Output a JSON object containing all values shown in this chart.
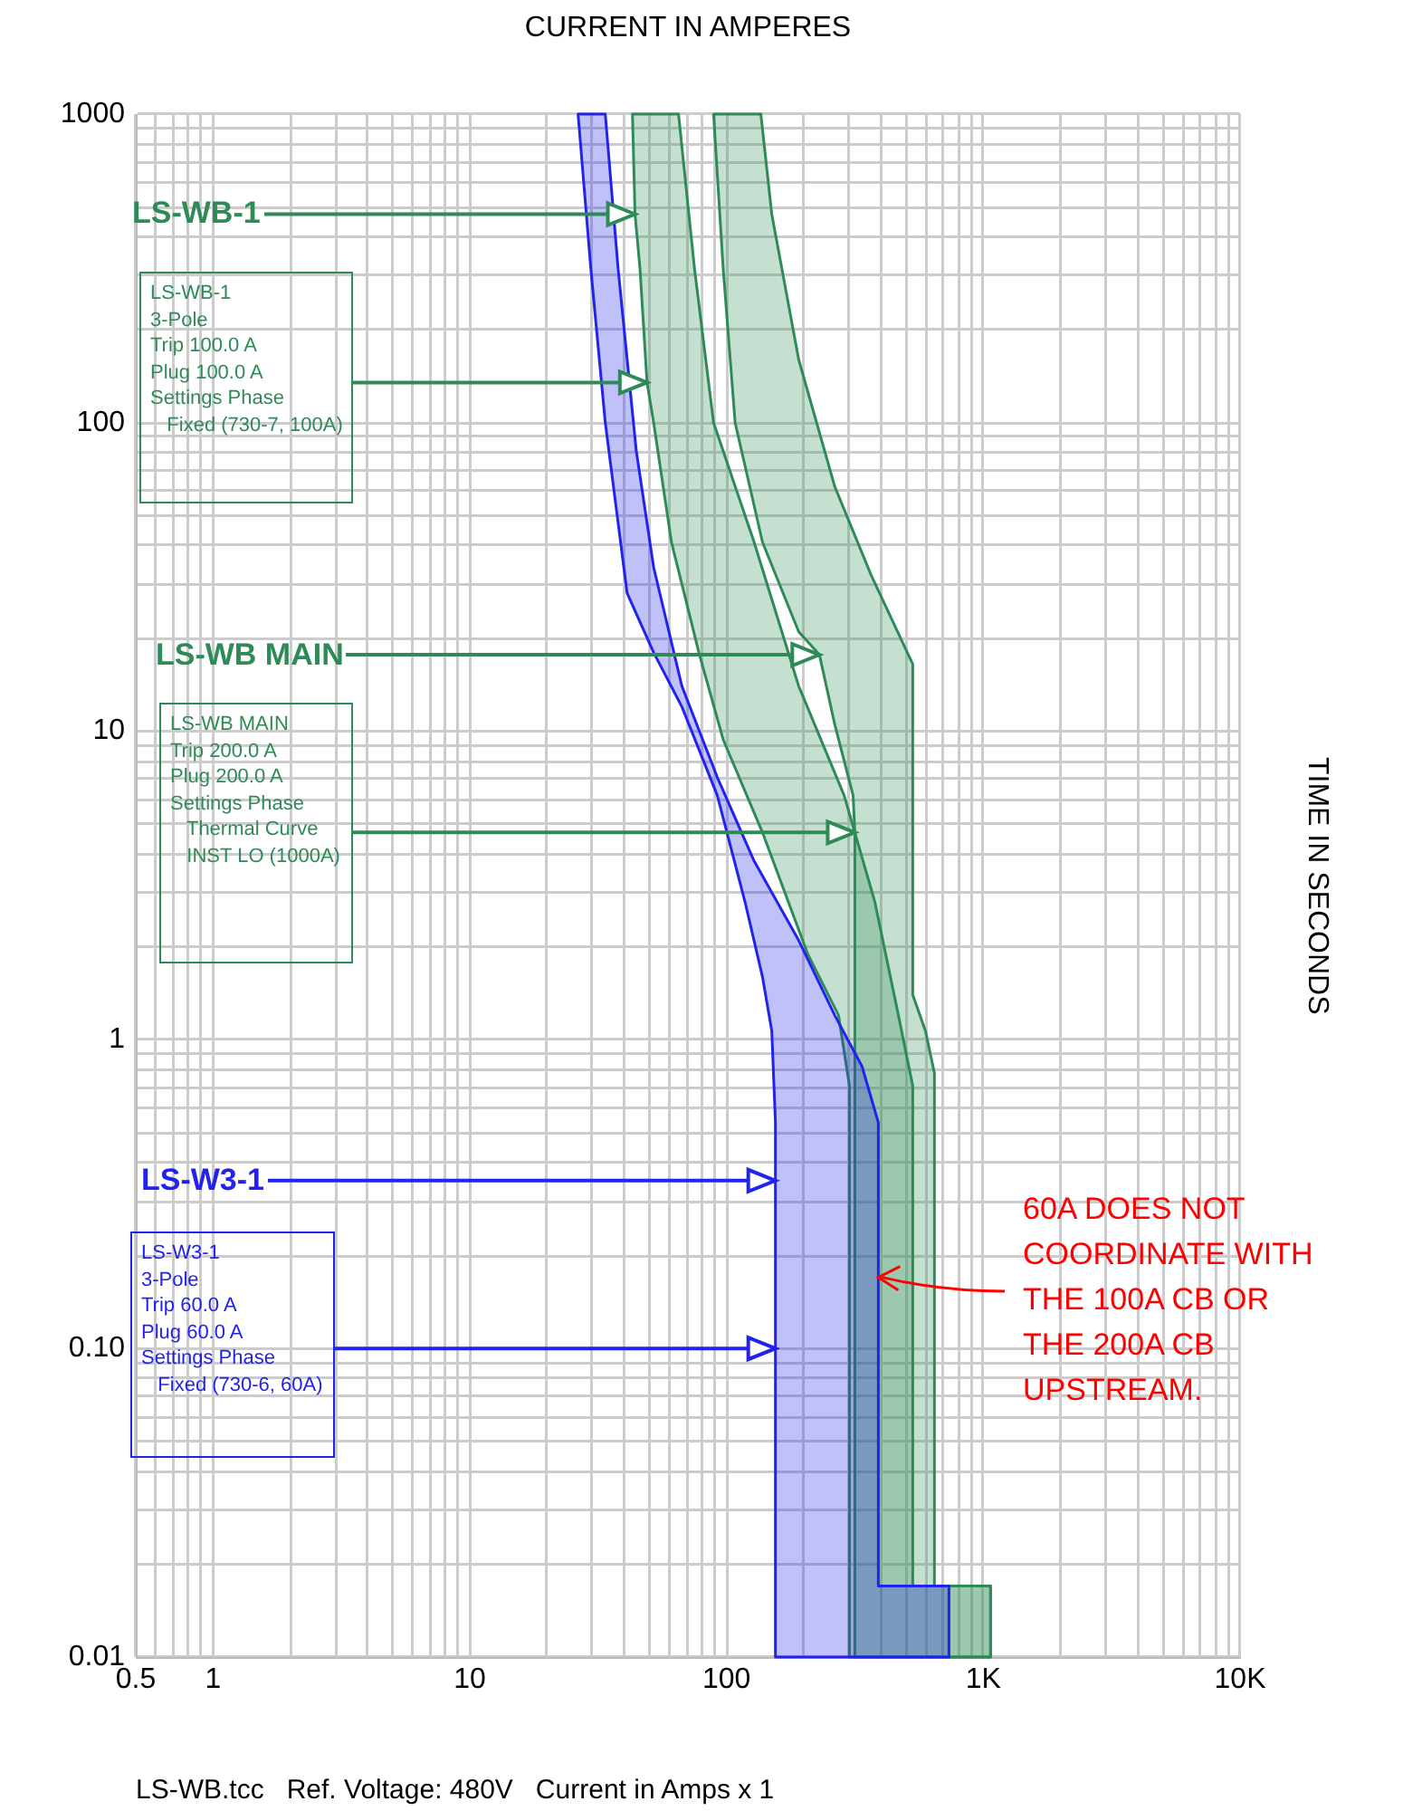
{
  "chart_data": {
    "type": "area",
    "xlabel": "CURRENT IN AMPERES",
    "ylabel": "TIME IN SECONDS",
    "log": "xy",
    "grid": true,
    "legend": false,
    "xlim": [
      0.5,
      10000
    ],
    "ylim": [
      0.01,
      1000
    ],
    "xticks": [
      0.5,
      {
        "value": 0.6,
        "label": null
      },
      {
        "value": 0.7,
        "label": null
      },
      {
        "value": 0.8,
        "label": null
      },
      {
        "value": 0.9,
        "label": null
      },
      1,
      {
        "value": 2,
        "label": null
      },
      {
        "value": 3,
        "label": null
      },
      {
        "value": 4,
        "label": null
      },
      {
        "value": 5,
        "label": null
      },
      {
        "value": 6,
        "label": null
      },
      {
        "value": 7,
        "label": null
      },
      {
        "value": 8,
        "label": null
      },
      {
        "value": 9,
        "label": null
      },
      10,
      {
        "value": 20,
        "label": null
      },
      {
        "value": 30,
        "label": null
      },
      {
        "value": 40,
        "label": null
      },
      {
        "value": 50,
        "label": null
      },
      {
        "value": 60,
        "label": null
      },
      {
        "value": 70,
        "label": null
      },
      {
        "value": 80,
        "label": null
      },
      {
        "value": 90,
        "label": null
      },
      100,
      {
        "value": 200,
        "label": null
      },
      {
        "value": 300,
        "label": null
      },
      {
        "value": 400,
        "label": null
      },
      {
        "value": 500,
        "label": null
      },
      {
        "value": 600,
        "label": null
      },
      {
        "value": 700,
        "label": null
      },
      {
        "value": 800,
        "label": null
      },
      {
        "value": 900,
        "label": null
      },
      {
        "value": 1000,
        "label": "1K"
      },
      {
        "value": 2000,
        "label": null
      },
      {
        "value": 3000,
        "label": null
      },
      {
        "value": 4000,
        "label": null
      },
      {
        "value": 5000,
        "label": null
      },
      {
        "value": 6000,
        "label": null
      },
      {
        "value": 7000,
        "label": null
      },
      {
        "value": 8000,
        "label": null
      },
      {
        "value": 9000,
        "label": null
      },
      {
        "value": 10000,
        "label": "10K"
      }
    ],
    "yticks": [
      0.01,
      {
        "value": 0.02,
        "label": null
      },
      {
        "value": 0.03,
        "label": null
      },
      {
        "value": 0.04,
        "label": null
      },
      {
        "value": 0.05,
        "label": null
      },
      {
        "value": 0.06,
        "label": null
      },
      {
        "value": 0.07,
        "label": null
      },
      {
        "value": 0.08,
        "label": null
      },
      {
        "value": 0.09,
        "label": null
      },
      {
        "value": 0.1,
        "label": "0.10"
      },
      {
        "value": 0.2,
        "label": null
      },
      {
        "value": 0.3,
        "label": null
      },
      {
        "value": 0.4,
        "label": null
      },
      {
        "value": 0.5,
        "label": null
      },
      {
        "value": 0.6,
        "label": null
      },
      {
        "value": 0.7,
        "label": null
      },
      {
        "value": 0.8,
        "label": null
      },
      {
        "value": 0.9,
        "label": null
      },
      1,
      {
        "value": 2,
        "label": null
      },
      {
        "value": 3,
        "label": null
      },
      {
        "value": 4,
        "label": null
      },
      {
        "value": 5,
        "label": null
      },
      {
        "value": 6,
        "label": null
      },
      {
        "value": 7,
        "label": null
      },
      {
        "value": 8,
        "label": null
      },
      {
        "value": 9,
        "label": null
      },
      10,
      {
        "value": 20,
        "label": null
      },
      {
        "value": 30,
        "label": null
      },
      {
        "value": 40,
        "label": null
      },
      {
        "value": 50,
        "label": null
      },
      {
        "value": 60,
        "label": null
      },
      {
        "value": 70,
        "label": null
      },
      {
        "value": 80,
        "label": null
      },
      {
        "value": 90,
        "label": null
      },
      100,
      {
        "value": 200,
        "label": null
      },
      {
        "value": 300,
        "label": null
      },
      {
        "value": 400,
        "label": null
      },
      {
        "value": 500,
        "label": null
      },
      {
        "value": 600,
        "label": null
      },
      {
        "value": 700,
        "label": null
      },
      {
        "value": 800,
        "label": null
      },
      {
        "value": 900,
        "label": null
      },
      1000
    ],
    "series": [
      {
        "color": "#2e8b57",
        "x": [
          43,
          44,
          46,
          49,
          52,
          61,
          78,
          97,
          138,
          207,
          273,
          301,
          301,
          1067,
          1067,
          531,
          531,
          467,
          378,
          287,
          191,
          128,
          89,
          75,
          65
        ],
        "values": [
          1000,
          474,
          316,
          135,
          100,
          41,
          18,
          9.4,
          4.7,
          1.9,
          1.2,
          0.71,
          0.01,
          0.01,
          0.017,
          0.017,
          0.71,
          1.2,
          2.8,
          6.2,
          14,
          41,
          100,
          316,
          1000
        ]
      },
      {
        "color": "#2e8b57",
        "x": [
          89,
          97,
          108,
          138,
          191,
          230,
          264,
          311,
          316,
          316,
          316,
          1067,
          1067,
          645,
          645,
          595,
          531,
          531,
          366,
          264,
          191,
          150,
          136
        ],
        "values": [
          1000,
          316,
          100,
          41,
          21,
          17.7,
          10.5,
          6.2,
          4.7,
          4.1,
          0.01,
          0.01,
          0.017,
          0.017,
          0.78,
          1.07,
          1.4,
          16.5,
          32,
          62,
          160,
          474,
          1000
        ]
      },
      {
        "color": "#2222ee",
        "x": [
          26.4,
          29.6,
          33.7,
          41,
          52,
          67,
          92,
          118,
          138,
          150,
          155,
          155,
          155,
          155,
          735,
          735,
          390,
          390,
          390,
          337,
          264,
          191,
          128,
          92,
          67,
          52,
          44.5,
          37.8,
          33.7
        ],
        "values": [
          1000,
          316,
          100,
          28,
          18,
          12,
          6.2,
          2.8,
          1.6,
          1.07,
          0.54,
          0.35,
          0.1,
          0.01,
          0.01,
          0.017,
          0.017,
          0.17,
          0.54,
          0.82,
          1.2,
          2.1,
          3.8,
          7.1,
          14,
          34,
          81,
          316,
          1000
        ]
      }
    ],
    "annotations": [
      {
        "text": "LS-WB-1",
        "x": 44,
        "y": 474
      },
      {
        "text": "LS-WB-1\n3-Pole\nTrip 100.0 A\nPlug 100.0 A\nSettings Phase\n   Fixed (730-7, 100A)",
        "x": 49,
        "y": 135
      },
      {
        "text": "LS-WB MAIN",
        "x": 230,
        "y": 17.7
      },
      {
        "text": "LS-WB MAIN\nTrip 200.0 A\nPlug 200.0 A\nSettings Phase\n   Thermal Curve\n   INST LO (1000A)",
        "x": 316,
        "y": 4.7
      },
      {
        "text": "LS-W3-1",
        "x": 155,
        "y": 0.35
      },
      {
        "text": "LS-W3-1\n3-Pole\nTrip 60.0 A\nPlug 60.0 A\nSettings Phase\n   Fixed (730-6, 60A)",
        "x": 155,
        "y": 0.1
      },
      {
        "text": "60A DOES NOT\nCOORDINATE WITH\nTHE 100A CB OR\nTHE 200A CB\nUPSTREAM.",
        "x": 390,
        "y": 0.17
      },
      "LS-WB.tcc   Ref. Voltage: 480V   Current in Amps x 1"
    ]
  }
}
